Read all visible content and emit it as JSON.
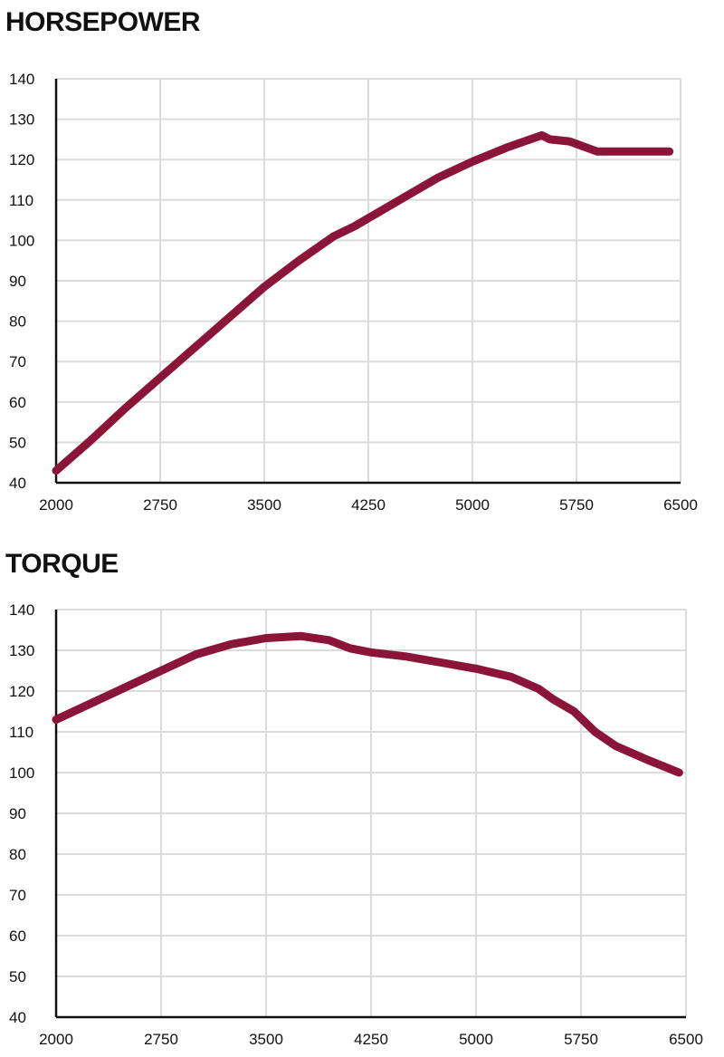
{
  "chart_data": [
    {
      "type": "line",
      "title": "HORSEPOWER",
      "xlabel": "",
      "ylabel": "",
      "xlim": [
        2000,
        6500
      ],
      "ylim": [
        40,
        140
      ],
      "x_ticks": [
        2000,
        2750,
        3500,
        4250,
        5000,
        5750,
        6500
      ],
      "y_ticks": [
        40,
        50,
        60,
        70,
        80,
        90,
        100,
        110,
        120,
        130,
        140
      ],
      "grid": true,
      "color": "#8b1538",
      "series": [
        {
          "x": [
            2000,
            2250,
            2500,
            2750,
            3000,
            3250,
            3500,
            3750,
            4000,
            4150,
            4500,
            4750,
            5000,
            5250,
            5500,
            5560,
            5700,
            5900,
            6000,
            6200,
            6420
          ],
          "values": [
            43,
            50.5,
            58.5,
            66,
            73.5,
            81,
            88.5,
            95,
            101,
            103.5,
            110.5,
            115.5,
            119.5,
            123,
            126,
            125,
            124.5,
            122,
            122,
            122,
            122
          ]
        }
      ]
    },
    {
      "type": "line",
      "title": "TORQUE",
      "xlabel": "",
      "ylabel": "",
      "xlim": [
        2000,
        6500
      ],
      "ylim": [
        40,
        140
      ],
      "x_ticks": [
        2000,
        2750,
        3500,
        4250,
        5000,
        5750,
        6500
      ],
      "y_ticks": [
        40,
        50,
        60,
        70,
        80,
        90,
        100,
        110,
        120,
        130,
        140
      ],
      "grid": true,
      "color": "#8b1538",
      "series": [
        {
          "x": [
            2000,
            2250,
            2500,
            2750,
            3000,
            3250,
            3500,
            3750,
            3950,
            4100,
            4250,
            4500,
            4750,
            5000,
            5250,
            5450,
            5550,
            5700,
            5850,
            6000,
            6200,
            6450
          ],
          "values": [
            113,
            117,
            121,
            125,
            129,
            131.5,
            133,
            133.5,
            132.5,
            130.5,
            129.5,
            128.5,
            127,
            125.5,
            123.5,
            120.5,
            118,
            115,
            110,
            106.5,
            103.5,
            100
          ]
        }
      ]
    }
  ]
}
